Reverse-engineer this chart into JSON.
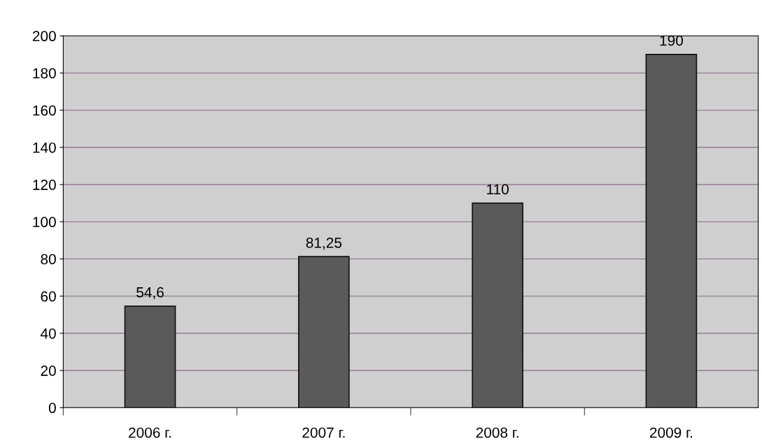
{
  "chart_data": {
    "type": "bar",
    "categories": [
      "2006 г.",
      "2007 г.",
      "2008 г.",
      "2009 г."
    ],
    "values": [
      54.6,
      81.25,
      110,
      190
    ],
    "value_labels": [
      "54,6",
      "81,25",
      "110",
      "190"
    ],
    "color": "#5a5a5a",
    "ylim": [
      0,
      200
    ],
    "yticks": [
      0,
      20,
      40,
      60,
      80,
      100,
      120,
      140,
      160,
      180,
      200
    ],
    "grid": "y",
    "legend": false
  }
}
